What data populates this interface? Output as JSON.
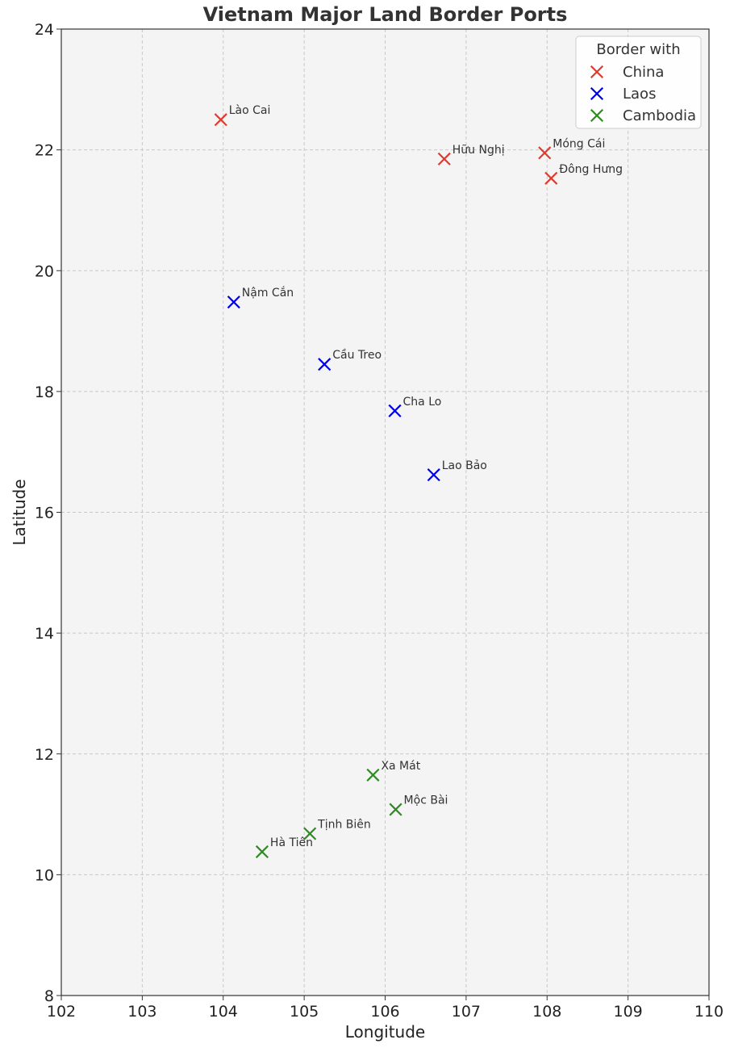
{
  "chart_data": {
    "type": "scatter",
    "title": "Vietnam Major Land Border Ports",
    "xlabel": "Longitude",
    "ylabel": "Latitude",
    "xlim": [
      102,
      110
    ],
    "ylim": [
      8,
      24
    ],
    "xticks": [
      "102",
      "103",
      "104",
      "105",
      "106",
      "107",
      "108",
      "109",
      "110"
    ],
    "yticks": [
      "8",
      "10",
      "12",
      "14",
      "16",
      "18",
      "20",
      "22",
      "24"
    ],
    "grid": true,
    "legend": {
      "title": "Border with",
      "placement": "top-right"
    },
    "series": [
      {
        "name": "China",
        "color": "#e03a2f",
        "points": [
          {
            "label": "Lào Cai",
            "x": 103.97,
            "y": 22.5
          },
          {
            "label": "Hữu Nghị",
            "x": 106.73,
            "y": 21.85
          },
          {
            "label": "Móng Cái",
            "x": 107.97,
            "y": 21.95
          },
          {
            "label": "Đông Hưng",
            "x": 108.05,
            "y": 21.53
          }
        ]
      },
      {
        "name": "Laos",
        "color": "#0000e6",
        "points": [
          {
            "label": "Nậm Cắn",
            "x": 104.13,
            "y": 19.48
          },
          {
            "label": "Cầu Treo",
            "x": 105.25,
            "y": 18.45
          },
          {
            "label": "Cha Lo",
            "x": 106.12,
            "y": 17.68
          },
          {
            "label": "Lao Bảo",
            "x": 106.6,
            "y": 16.62
          }
        ]
      },
      {
        "name": "Cambodia",
        "color": "#2e8b22",
        "points": [
          {
            "label": "Xa Mát",
            "x": 105.85,
            "y": 11.65
          },
          {
            "label": "Mộc Bài",
            "x": 106.13,
            "y": 11.08
          },
          {
            "label": "Tịnh Biên",
            "x": 105.07,
            "y": 10.68
          },
          {
            "label": "Hà Tiên",
            "x": 104.48,
            "y": 10.38
          }
        ]
      }
    ]
  }
}
